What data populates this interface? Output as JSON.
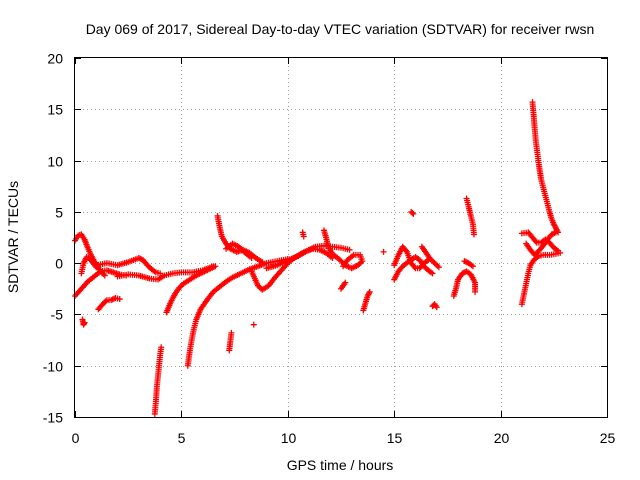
{
  "chart_data": {
    "type": "scatter",
    "title": "Day 069 of 2017, Sidereal Day-to-day VTEC variation (SDTVAR) for receiver rwsn",
    "xlabel": "GPS time / hours",
    "ylabel": "SDTVAR / TECUs",
    "xlim": [
      0,
      25
    ],
    "ylim": [
      -15,
      20
    ],
    "xticks": [
      "0",
      "5",
      "10",
      "15",
      "20",
      "25"
    ],
    "yticks": [
      "-15",
      "-10",
      "-5",
      "0",
      "5",
      "10",
      "15",
      "20"
    ],
    "grid": true,
    "marker": "+",
    "series": [
      {
        "name": "SDTVAR",
        "color": "#ff0000",
        "tracks": [
          [
            [
              0.0,
              -3.2
            ],
            [
              0.3,
              -2.5
            ],
            [
              0.6,
              -1.8
            ],
            [
              0.9,
              -1.3
            ],
            [
              1.2,
              -0.8
            ],
            [
              1.5,
              -0.7
            ],
            [
              1.8,
              -0.9
            ],
            [
              2.1,
              -1.1
            ],
            [
              2.4,
              -1.2
            ]
          ],
          [
            [
              0.0,
              2.2
            ],
            [
              0.15,
              2.7
            ],
            [
              0.3,
              2.8
            ],
            [
              0.45,
              2.3
            ],
            [
              0.6,
              1.5
            ],
            [
              0.75,
              0.8
            ],
            [
              0.9,
              0.2
            ],
            [
              1.05,
              -0.3
            ],
            [
              1.2,
              -0.8
            ],
            [
              1.4,
              -1.2
            ]
          ],
          [
            [
              0.3,
              -1.0
            ],
            [
              0.4,
              0.0
            ],
            [
              0.55,
              0.6
            ],
            [
              0.7,
              0.4
            ],
            [
              0.85,
              0.0
            ],
            [
              1.0,
              -0.4
            ]
          ],
          [
            [
              0.35,
              -5.5
            ],
            [
              0.4,
              -6.0
            ],
            [
              0.45,
              -5.8
            ]
          ],
          [
            [
              1.1,
              -4.5
            ],
            [
              1.3,
              -4.0
            ],
            [
              1.5,
              -3.6
            ],
            [
              1.7,
              -3.6
            ],
            [
              1.9,
              -3.4
            ],
            [
              2.1,
              -3.5
            ]
          ],
          [
            [
              1.0,
              -0.2
            ],
            [
              1.5,
              0.0
            ],
            [
              2.0,
              -0.2
            ],
            [
              2.5,
              0.1
            ],
            [
              3.0,
              0.5
            ],
            [
              3.2,
              0.3
            ],
            [
              3.4,
              -0.2
            ],
            [
              3.6,
              -0.6
            ],
            [
              3.8,
              -0.9
            ],
            [
              4.0,
              -1.0
            ]
          ],
          [
            [
              2.0,
              -1.3
            ],
            [
              2.5,
              -1.1
            ],
            [
              3.0,
              -1.2
            ],
            [
              3.5,
              -1.5
            ],
            [
              3.9,
              -1.6
            ],
            [
              4.2,
              -1.2
            ],
            [
              4.6,
              -1.0
            ],
            [
              5.0,
              -0.9
            ],
            [
              5.5,
              -0.9
            ],
            [
              6.0,
              -0.7
            ],
            [
              6.5,
              -0.3
            ]
          ],
          [
            [
              3.75,
              -14.7
            ],
            [
              3.8,
              -13.5
            ],
            [
              3.85,
              -12.0
            ],
            [
              3.9,
              -11.0
            ],
            [
              3.95,
              -10.0
            ],
            [
              4.0,
              -9.0
            ],
            [
              4.05,
              -8.2
            ]
          ],
          [
            [
              4.3,
              -4.8
            ],
            [
              4.5,
              -3.8
            ],
            [
              4.7,
              -3.0
            ],
            [
              4.9,
              -2.4
            ],
            [
              5.1,
              -2.0
            ],
            [
              5.4,
              -1.6
            ],
            [
              5.7,
              -1.2
            ],
            [
              6.0,
              -0.9
            ],
            [
              6.3,
              -0.6
            ],
            [
              6.6,
              -0.3
            ]
          ],
          [
            [
              5.3,
              -10.0
            ],
            [
              5.4,
              -8.5
            ],
            [
              5.5,
              -7.3
            ],
            [
              5.6,
              -6.3
            ],
            [
              5.7,
              -5.5
            ],
            [
              5.9,
              -4.5
            ],
            [
              6.2,
              -3.6
            ],
            [
              6.5,
              -2.8
            ],
            [
              6.8,
              -2.3
            ],
            [
              7.1,
              -1.8
            ],
            [
              7.4,
              -1.4
            ],
            [
              7.8,
              -1.0
            ],
            [
              8.2,
              -0.6
            ],
            [
              8.6,
              -0.3
            ],
            [
              9.0,
              0.0
            ],
            [
              9.5,
              0.2
            ],
            [
              10.0,
              0.4
            ]
          ],
          [
            [
              6.7,
              4.6
            ],
            [
              6.8,
              3.5
            ],
            [
              6.9,
              2.6
            ],
            [
              7.1,
              1.9
            ],
            [
              7.3,
              1.4
            ],
            [
              7.6,
              1.1
            ],
            [
              7.9,
              1.3
            ],
            [
              8.2,
              1.0
            ],
            [
              8.5,
              0.5
            ],
            [
              8.8,
              0.1
            ]
          ],
          [
            [
              7.1,
              1.4
            ],
            [
              7.4,
              1.9
            ],
            [
              7.7,
              1.6
            ],
            [
              8.0,
              1.0
            ],
            [
              8.3,
              0.5
            ]
          ],
          [
            [
              7.25,
              -8.5
            ],
            [
              7.3,
              -7.6
            ],
            [
              7.35,
              -6.8
            ]
          ],
          [
            [
              8.4,
              -6.0
            ]
          ],
          [
            [
              8.3,
              -0.8
            ],
            [
              8.6,
              -2.2
            ],
            [
              8.8,
              -2.6
            ],
            [
              9.1,
              -2.2
            ],
            [
              9.4,
              -1.4
            ],
            [
              9.7,
              -0.7
            ],
            [
              10.0,
              0.0
            ],
            [
              10.3,
              0.5
            ],
            [
              10.6,
              0.9
            ],
            [
              10.9,
              1.2
            ],
            [
              11.2,
              1.4
            ],
            [
              11.5,
              1.3
            ],
            [
              11.8,
              1.0
            ],
            [
              12.1,
              0.5
            ]
          ],
          [
            [
              9.0,
              -0.5
            ],
            [
              9.5,
              -0.2
            ],
            [
              10.0,
              0.3
            ],
            [
              10.5,
              0.7
            ],
            [
              10.9,
              1.2
            ],
            [
              11.3,
              1.6
            ],
            [
              11.7,
              1.7
            ],
            [
              12.1,
              1.6
            ],
            [
              12.5,
              1.5
            ],
            [
              12.9,
              1.3
            ]
          ],
          [
            [
              10.7,
              3.0
            ],
            [
              10.75,
              2.6
            ]
          ],
          [
            [
              11.7,
              3.2
            ],
            [
              11.8,
              2.5
            ],
            [
              11.9,
              1.6
            ],
            [
              12.1,
              0.9
            ],
            [
              12.4,
              0.4
            ],
            [
              12.7,
              -0.2
            ],
            [
              13.0,
              -0.5
            ],
            [
              13.3,
              -0.2
            ],
            [
              13.5,
              0.2
            ],
            [
              13.4,
              0.8
            ],
            [
              13.1,
              0.8
            ],
            [
              12.8,
              0.3
            ],
            [
              12.6,
              -0.3
            ]
          ],
          [
            [
              12.5,
              -2.5
            ],
            [
              12.7,
              -1.9
            ]
          ],
          [
            [
              13.55,
              -4.6
            ],
            [
              13.65,
              -3.9
            ],
            [
              13.75,
              -3.2
            ],
            [
              13.85,
              -2.8
            ]
          ],
          [
            [
              14.5,
              1.1
            ]
          ],
          [
            [
              15.0,
              -0.2
            ],
            [
              15.2,
              0.8
            ],
            [
              15.4,
              1.6
            ],
            [
              15.6,
              1.1
            ],
            [
              15.8,
              0.0
            ],
            [
              16.0,
              -0.5
            ],
            [
              16.2,
              -0.5
            ],
            [
              16.4,
              0.0
            ],
            [
              16.6,
              0.3
            ]
          ],
          [
            [
              15.0,
              -1.6
            ],
            [
              15.2,
              -0.8
            ],
            [
              15.4,
              -0.3
            ],
            [
              15.7,
              0.2
            ],
            [
              16.0,
              0.6
            ],
            [
              16.2,
              0.3
            ],
            [
              16.4,
              -0.3
            ],
            [
              16.6,
              -0.7
            ],
            [
              16.8,
              -1.0
            ]
          ],
          [
            [
              15.8,
              5.0
            ],
            [
              15.9,
              4.8
            ]
          ],
          [
            [
              16.3,
              1.6
            ],
            [
              16.5,
              1.0
            ],
            [
              16.7,
              0.4
            ],
            [
              16.9,
              0.0
            ],
            [
              17.1,
              -0.4
            ]
          ],
          [
            [
              16.8,
              -4.2
            ],
            [
              16.9,
              -4.0
            ],
            [
              17.0,
              -4.3
            ]
          ],
          [
            [
              17.8,
              -3.2
            ],
            [
              17.9,
              -2.5
            ],
            [
              18.0,
              -1.6
            ],
            [
              18.2,
              -1.0
            ],
            [
              18.4,
              -0.8
            ],
            [
              18.6,
              -1.1
            ],
            [
              18.8,
              -1.9
            ],
            [
              18.8,
              -2.8
            ]
          ],
          [
            [
              18.4,
              6.3
            ],
            [
              18.5,
              5.5
            ],
            [
              18.6,
              4.6
            ],
            [
              18.7,
              3.8
            ],
            [
              18.75,
              2.8
            ]
          ],
          [
            [
              18.3,
              0.2
            ],
            [
              18.5,
              0.0
            ],
            [
              18.7,
              -0.3
            ]
          ],
          [
            [
              21.0,
              2.9
            ],
            [
              21.3,
              3.0
            ],
            [
              21.5,
              2.5
            ],
            [
              21.7,
              2.0
            ],
            [
              21.9,
              2.0
            ],
            [
              22.1,
              2.3
            ],
            [
              22.3,
              2.0
            ],
            [
              22.5,
              1.5
            ],
            [
              22.7,
              1.2
            ]
          ],
          [
            [
              21.0,
              -4.0
            ],
            [
              21.1,
              -3.0
            ],
            [
              21.2,
              -2.0
            ],
            [
              21.3,
              -1.0
            ],
            [
              21.4,
              -0.2
            ],
            [
              21.6,
              0.4
            ],
            [
              21.8,
              0.7
            ],
            [
              22.0,
              0.8
            ],
            [
              22.3,
              0.8
            ],
            [
              22.6,
              0.9
            ],
            [
              22.8,
              1.0
            ]
          ],
          [
            [
              21.2,
              1.9
            ],
            [
              21.4,
              1.3
            ],
            [
              21.6,
              0.8
            ],
            [
              21.8,
              1.2
            ],
            [
              22.0,
              1.7
            ],
            [
              22.2,
              2.3
            ],
            [
              22.4,
              2.8
            ],
            [
              22.6,
              3.0
            ]
          ],
          [
            [
              21.5,
              15.7
            ],
            [
              21.55,
              14.5
            ],
            [
              21.6,
              13.2
            ],
            [
              21.65,
              12.0
            ],
            [
              21.7,
              11.2
            ],
            [
              21.75,
              10.4
            ],
            [
              21.8,
              9.6
            ],
            [
              21.85,
              8.9
            ],
            [
              21.9,
              8.2
            ],
            [
              22.0,
              7.4
            ],
            [
              22.1,
              6.6
            ],
            [
              22.2,
              5.8
            ],
            [
              22.3,
              5.0
            ],
            [
              22.4,
              4.3
            ],
            [
              22.5,
              3.8
            ],
            [
              22.6,
              3.4
            ],
            [
              22.7,
              3.0
            ]
          ]
        ]
      }
    ]
  }
}
